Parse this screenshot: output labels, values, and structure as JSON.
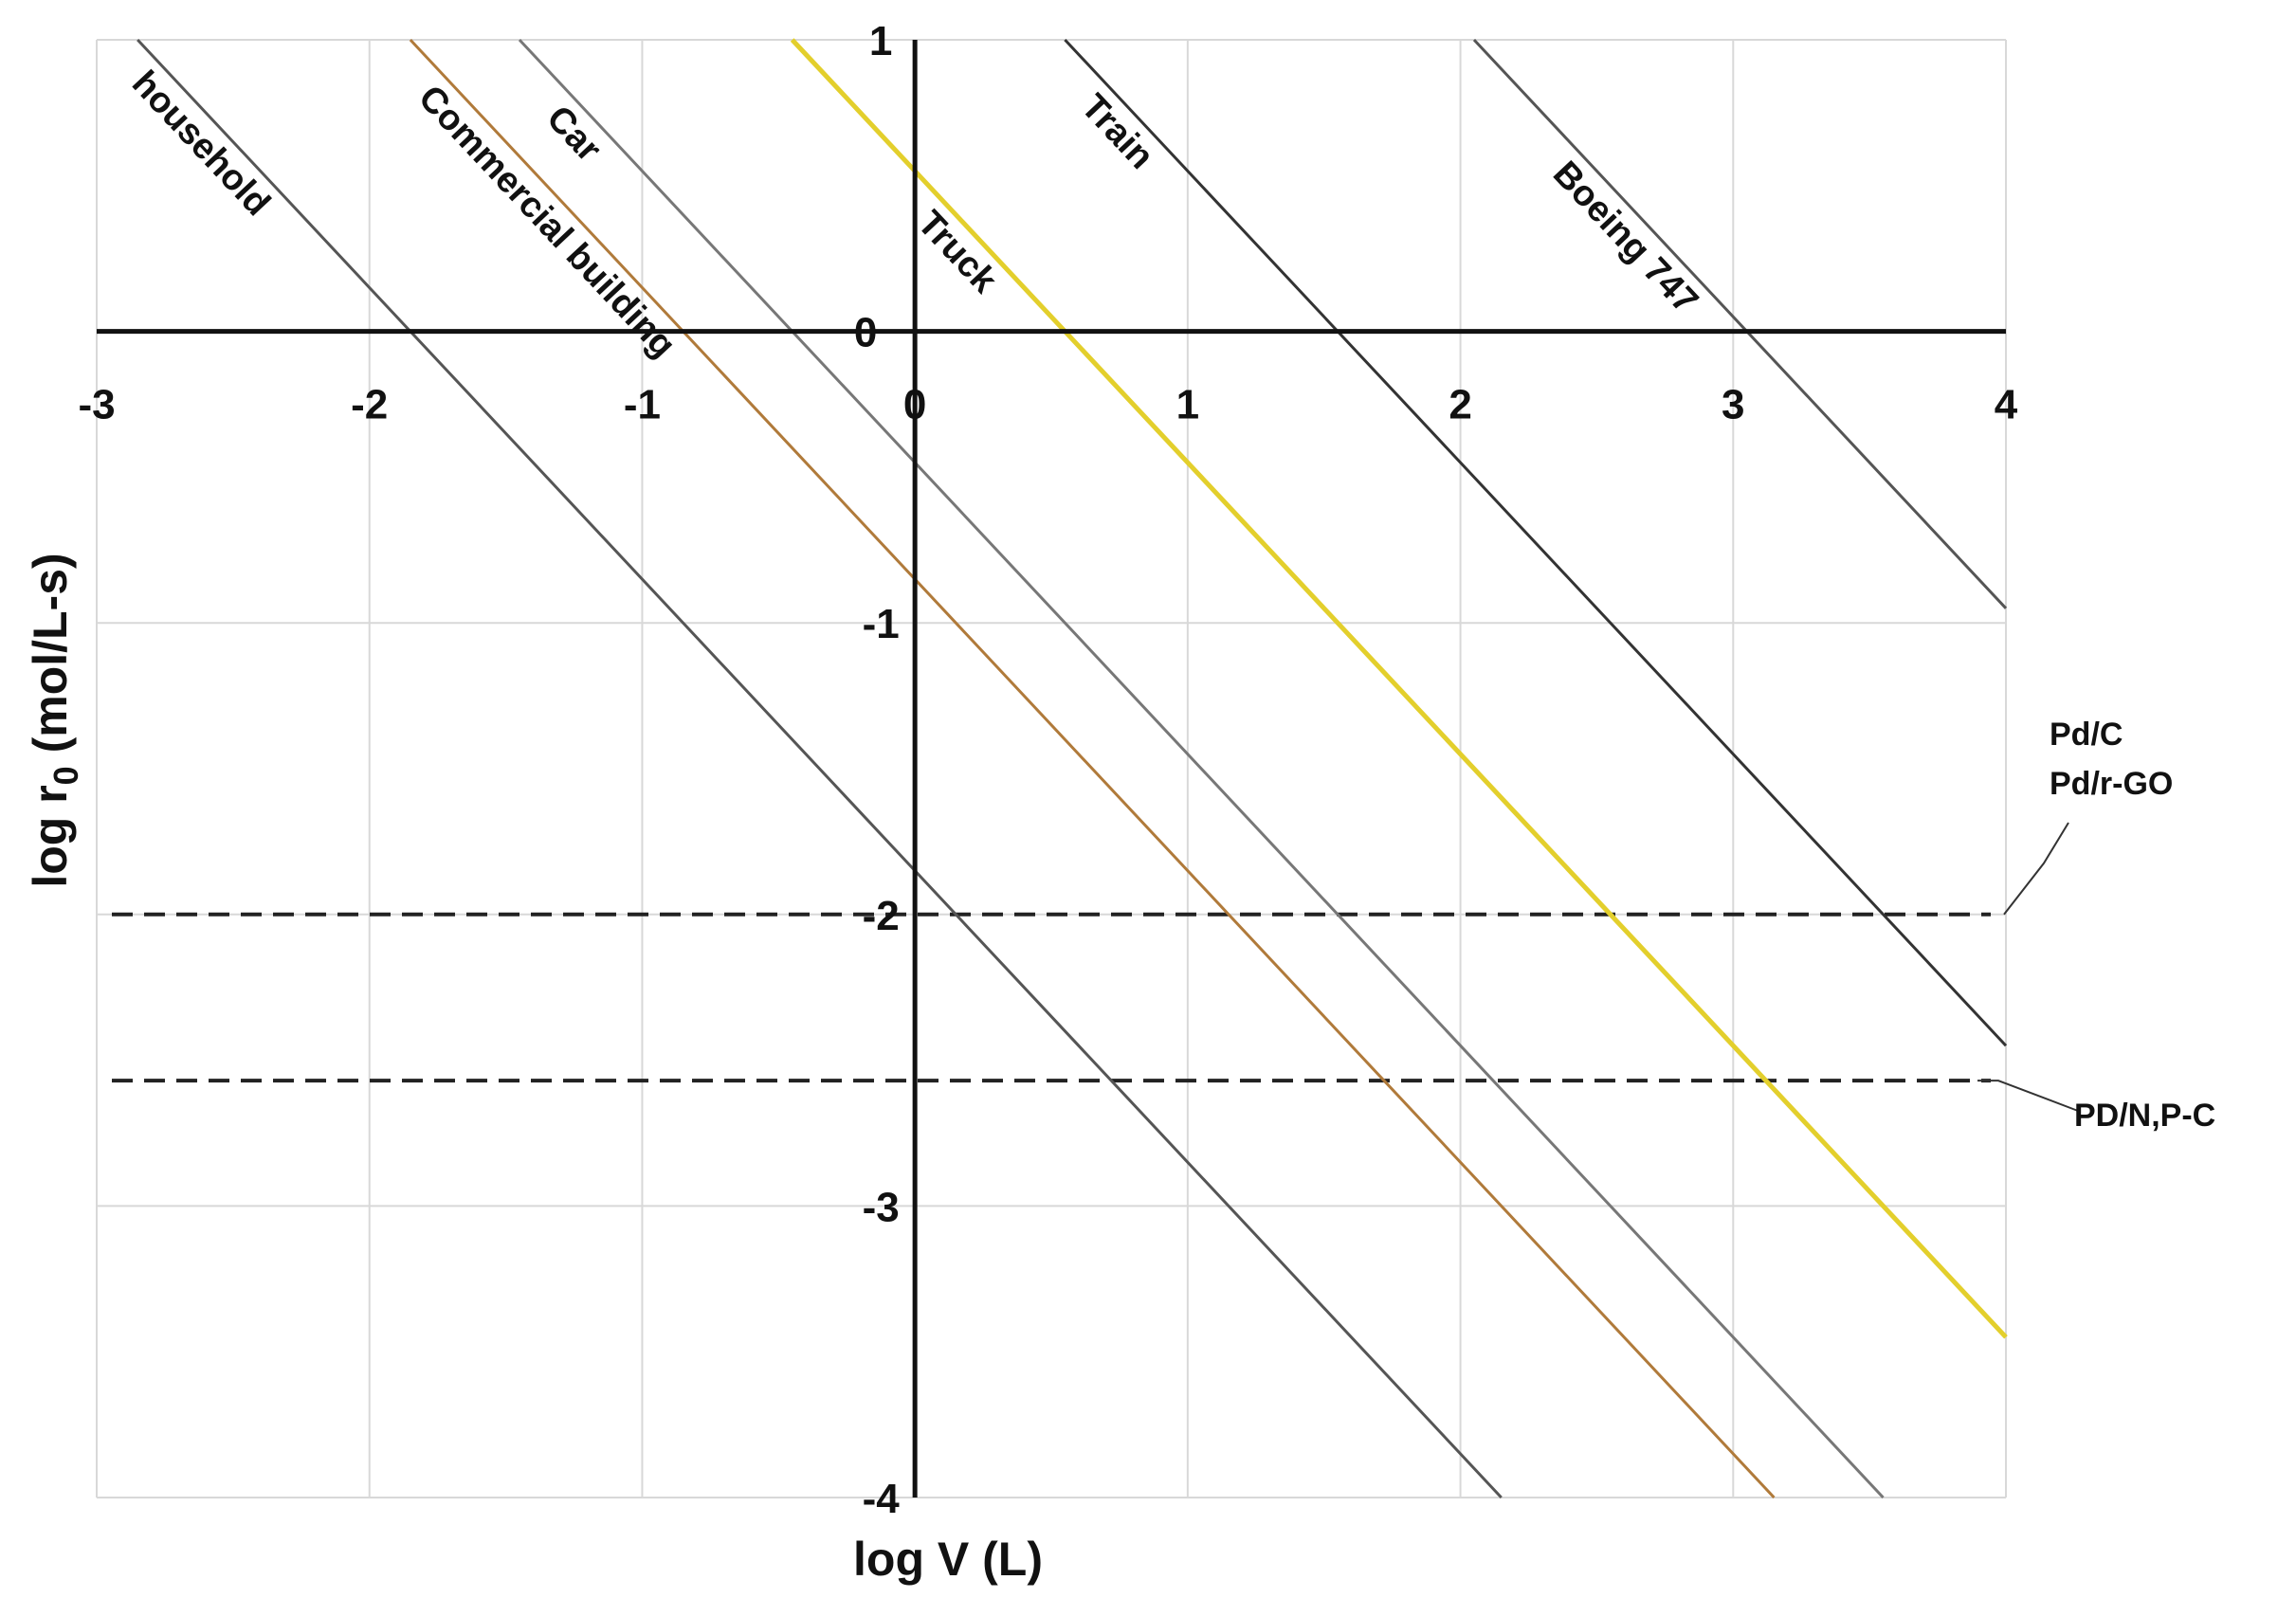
{
  "chart_data": {
    "type": "line",
    "xlabel": "log V (L)",
    "ylabel": "log r",
    "ylabel_sub": "0",
    "ylabel_tail": " (mol/L-s)",
    "xlim": [
      -3,
      4
    ],
    "ylim": [
      -4,
      1
    ],
    "xticks": [
      -3,
      -2,
      -1,
      0,
      1,
      2,
      3,
      4
    ],
    "yticks": [
      -4,
      -3,
      -2,
      -1,
      0,
      1
    ],
    "grid": true,
    "series": [
      {
        "name": "household",
        "color": "#555555",
        "points": [
          [
            -2.85,
            1
          ],
          [
            2.15,
            -4
          ]
        ]
      },
      {
        "name": "Commercial building",
        "color": "#b07a3a",
        "points": [
          [
            -1.85,
            1
          ],
          [
            3.15,
            -4
          ]
        ]
      },
      {
        "name": "Car",
        "color": "#777777",
        "points": [
          [
            -1.45,
            1
          ],
          [
            3.55,
            -4
          ]
        ]
      },
      {
        "name": "Truck",
        "color": "#e3cf2c",
        "points": [
          [
            -0.45,
            1
          ],
          [
            4,
            -3.45
          ]
        ]
      },
      {
        "name": "Train",
        "color": "#333333",
        "points": [
          [
            0.55,
            1
          ],
          [
            4,
            -2.45
          ]
        ]
      },
      {
        "name": "Boeing 747",
        "color": "#555555",
        "points": [
          [
            2.05,
            1
          ],
          [
            4,
            -0.95
          ]
        ]
      }
    ],
    "reference_lines": [
      {
        "y": -2,
        "label_lines": [
          "Pd/C",
          "Pd/r-GO"
        ]
      },
      {
        "y": -2.57,
        "label_lines": [
          "PD/N,P-C"
        ]
      }
    ]
  }
}
